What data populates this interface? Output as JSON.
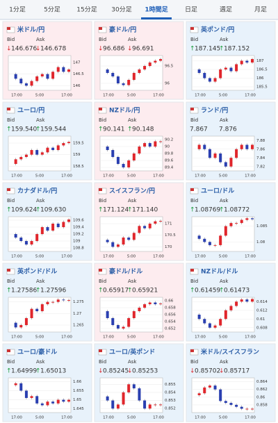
{
  "tabs": [
    "1分足",
    "5分足",
    "15分足",
    "30分足",
    "1時間足",
    "日足",
    "週足",
    "月足"
  ],
  "active_tab": 4,
  "bid_label": "Bid",
  "ask_label": "Ask",
  "time_labels": [
    "17:00",
    "5:00",
    "17:00"
  ],
  "cards": [
    {
      "name": "米ドル/円",
      "bid_arrow": "↓",
      "bid": "146.676",
      "ask_arrow": "↓",
      "ask": "146.678",
      "color": "#fdecef",
      "chart": {
        "type": "candlestick",
        "values": [
          146.5,
          146.3,
          146.1,
          146.0,
          146.2,
          146.4,
          146.5,
          146.3,
          146.6,
          146.8,
          146.6,
          146.7
        ],
        "ylim": [
          145.8,
          147.3
        ],
        "yticks": [
          147,
          146.5,
          146
        ]
      }
    },
    {
      "name": "豪ドル/円",
      "bid_arrow": "↓",
      "bid": "96.686",
      "ask_arrow": "↓",
      "ask": "96.691",
      "color": "#fdecef",
      "chart": {
        "type": "candlestick",
        "values": [
          96.4,
          96.3,
          96.2,
          96.0,
          95.95,
          96.1,
          96.3,
          96.4,
          96.5,
          96.6,
          96.65,
          96.7
        ],
        "ylim": [
          95.8,
          96.8
        ],
        "yticks": [
          96.5,
          96
        ]
      }
    },
    {
      "name": "英ポンド/円",
      "bid_arrow": "↑",
      "bid": "187.145",
      "ask_arrow": "↑",
      "ask": "187.152",
      "color": "#e8f2fb",
      "chart": {
        "type": "candlestick",
        "values": [
          186.5,
          186.3,
          186.0,
          185.8,
          186.0,
          186.5,
          186.6,
          186.4,
          186.8,
          187.0,
          186.9,
          187.1
        ],
        "ylim": [
          185.3,
          187.3
        ],
        "yticks": [
          187,
          186.5,
          186,
          185.5
        ]
      }
    },
    {
      "name": "ユーロ/円",
      "bid_arrow": "↑",
      "bid": "159.540",
      "ask_arrow": "↑",
      "ask": "159.544",
      "color": "#e8f2fb",
      "chart": {
        "type": "candlestick",
        "values": [
          158.6,
          158.8,
          158.9,
          159.0,
          159.2,
          159.0,
          159.1,
          159.3,
          159.2,
          159.4,
          159.5,
          159.55
        ],
        "ylim": [
          158.3,
          159.8
        ],
        "yticks": [
          159.5,
          159,
          158.5
        ]
      }
    },
    {
      "name": "NZドル/円",
      "bid_arrow": "↑",
      "bid": "90.141",
      "ask_arrow": "↑",
      "ask": "90.148",
      "color": "#fdecef",
      "chart": {
        "type": "candlestick",
        "values": [
          90.0,
          89.9,
          89.7,
          89.5,
          89.4,
          89.6,
          89.8,
          90.0,
          90.1,
          90.0,
          90.15,
          90.15
        ],
        "ylim": [
          89.3,
          90.3
        ],
        "yticks": [
          90.2,
          90,
          89.8,
          89.6,
          89.4
        ]
      }
    },
    {
      "name": "ランド/円",
      "bid": "7.867",
      "ask": "7.876",
      "color": "#e8f2fb",
      "chart": {
        "type": "candlestick",
        "values": [
          7.86,
          7.87,
          7.86,
          7.84,
          7.85,
          7.83,
          7.82,
          7.84,
          7.86,
          7.87,
          7.86,
          7.87
        ],
        "ylim": [
          7.81,
          7.89
        ],
        "yticks": [
          7.88,
          7.86,
          7.84,
          7.82
        ]
      }
    },
    {
      "name": "カナダドル/円",
      "bid_arrow": "↑",
      "bid": "109.624",
      "ask_arrow": "↑",
      "ask": "109.630",
      "color": "#e8f2fb",
      "chart": {
        "type": "candlestick",
        "values": [
          109.2,
          109.1,
          109.0,
          108.9,
          109.0,
          109.2,
          109.4,
          109.3,
          109.5,
          109.4,
          109.55,
          109.62
        ],
        "ylim": [
          108.7,
          109.7
        ],
        "yticks": [
          109.6,
          109.4,
          109.2,
          109,
          108.8
        ]
      }
    },
    {
      "name": "スイスフラン/円",
      "bid_arrow": "↑",
      "bid": "171.124",
      "ask_arrow": "↑",
      "ask": "171.140",
      "color": "#fdecef",
      "chart": {
        "type": "candlestick",
        "values": [
          170.3,
          170.2,
          170.0,
          170.1,
          170.4,
          170.3,
          170.6,
          170.9,
          170.8,
          171.0,
          171.1,
          171.12
        ],
        "ylim": [
          169.8,
          171.3
        ],
        "yticks": [
          171,
          170.5,
          170
        ]
      }
    },
    {
      "name": "ユーロ/ドル",
      "bid_arrow": "↑",
      "bid": "1.08769",
      "ask_arrow": "↑",
      "ask": "1.08772",
      "color": "#e8f2fb",
      "chart": {
        "type": "candlestick",
        "values": [
          1.082,
          1.081,
          1.08,
          1.079,
          1.079,
          1.082,
          1.085,
          1.086,
          1.086,
          1.087,
          1.0875,
          1.0872
        ],
        "ylim": [
          1.077,
          1.088
        ],
        "yticks": [
          1.085,
          1.08
        ]
      }
    },
    {
      "name": "英ポンド/ドル",
      "bid_arrow": "↑",
      "bid": "1.27586",
      "ask_arrow": "↑",
      "ask": "1.27596",
      "color": "#e8f2fb",
      "chart": {
        "type": "candlestick",
        "values": [
          1.266,
          1.264,
          1.265,
          1.268,
          1.272,
          1.271,
          1.274,
          1.275,
          1.275,
          1.276,
          1.2757,
          1.2758
        ],
        "ylim": [
          1.262,
          1.277
        ],
        "yticks": [
          1.275,
          1.27,
          1.265
        ]
      }
    },
    {
      "name": "豪ドル/ドル",
      "bid_arrow": "↑",
      "bid": "0.65917",
      "ask_arrow": "↑",
      "ask": "0.65921",
      "color": "#fdecef",
      "chart": {
        "type": "candlestick",
        "values": [
          0.657,
          0.655,
          0.653,
          0.652,
          0.6525,
          0.655,
          0.657,
          0.658,
          0.659,
          0.6595,
          0.659,
          0.6592
        ],
        "ylim": [
          0.651,
          0.661
        ],
        "yticks": [
          0.66,
          0.658,
          0.656,
          0.654,
          0.652
        ]
      }
    },
    {
      "name": "NZドル/ドル",
      "bid_arrow": "↑",
      "bid": "0.61459",
      "ask_arrow": "↑",
      "ask": "0.61473",
      "color": "#e8f2fb",
      "chart": {
        "type": "candlestick",
        "values": [
          0.611,
          0.61,
          0.609,
          0.608,
          0.6085,
          0.61,
          0.612,
          0.613,
          0.614,
          0.6145,
          0.614,
          0.6146
        ],
        "ylim": [
          0.607,
          0.615
        ],
        "yticks": [
          0.614,
          0.612,
          0.61,
          0.608
        ]
      }
    },
    {
      "name": "ユーロ/豪ドル",
      "bid_arrow": "↑",
      "bid": "1.64999",
      "ask_arrow": "↑",
      "ask": "1.65013",
      "color": "#e8f2fb",
      "chart": {
        "type": "candlestick",
        "values": [
          1.658,
          1.659,
          1.655,
          1.651,
          1.652,
          1.648,
          1.647,
          1.649,
          1.648,
          1.65,
          1.649,
          1.65
        ],
        "ylim": [
          1.643,
          1.662
        ],
        "yticks": [
          1.66,
          1.655,
          1.65,
          1.645
        ]
      }
    },
    {
      "name": "ユーロ/英ポンド",
      "bid_arrow": "↓",
      "bid": "0.85245",
      "ask_arrow": "↓",
      "ask": "0.85253",
      "color": "#e8f2fb",
      "chart": {
        "type": "candlestick",
        "values": [
          0.8535,
          0.853,
          0.852,
          0.8525,
          0.854,
          0.855,
          0.8545,
          0.853,
          0.852,
          0.8525,
          0.8525,
          0.8525
        ],
        "ylim": [
          0.8515,
          0.8558
        ],
        "yticks": [
          0.855,
          0.854,
          0.853,
          0.852
        ]
      }
    },
    {
      "name": "米ドル/スイスフラン",
      "bid_arrow": "↓",
      "bid": "0.85702",
      "ask_arrow": "↓",
      "ask": "0.85717",
      "color": "#e8f2fb",
      "chart": {
        "type": "candlestick",
        "values": [
          0.8605,
          0.861,
          0.8625,
          0.863,
          0.862,
          0.859,
          0.8585,
          0.858,
          0.8575,
          0.857,
          0.857,
          0.857
        ],
        "ylim": [
          0.856,
          0.865
        ],
        "yticks": [
          0.864,
          0.862,
          0.86,
          0.858
        ]
      }
    }
  ]
}
